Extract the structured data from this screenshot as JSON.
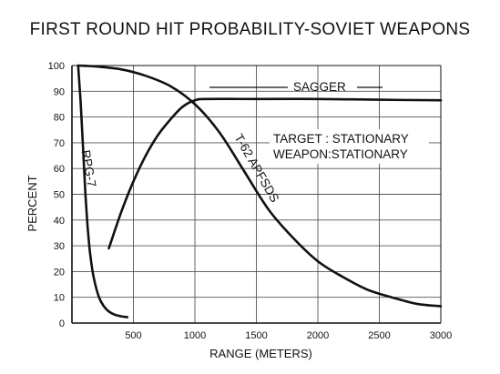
{
  "chart_data": {
    "type": "line",
    "title": "FIRST ROUND HIT PROBABILITY-SOVIET WEAPONS",
    "xlabel": "RANGE (METERS)",
    "ylabel": "PERCENT",
    "xlim": [
      0,
      3000
    ],
    "ylim": [
      0,
      100
    ],
    "x_ticks": [
      500,
      1000,
      1500,
      2000,
      2500,
      3000
    ],
    "y_ticks": [
      0,
      10,
      20,
      30,
      40,
      50,
      60,
      70,
      80,
      90,
      100
    ],
    "grid": true,
    "line_color": "#111111",
    "series": [
      {
        "name": "RPG-7",
        "x": [
          50,
          70,
          90,
          110,
          130,
          150,
          180,
          220,
          260,
          300,
          350,
          400,
          450
        ],
        "y": [
          100,
          86,
          68,
          50,
          36,
          26,
          17,
          10,
          6.5,
          4.5,
          3.2,
          2.6,
          2.3
        ]
      },
      {
        "name": "SAGGER",
        "x": [
          300,
          400,
          500,
          600,
          700,
          800,
          900,
          1000,
          1100,
          1500,
          2000,
          2500,
          3000
        ],
        "y": [
          29,
          43,
          55,
          65,
          73,
          79,
          84,
          86.5,
          87,
          87,
          87,
          86.7,
          86.5
        ]
      },
      {
        "name": "T-62 APFSDS",
        "x": [
          50,
          200,
          400,
          600,
          800,
          1000,
          1200,
          1400,
          1600,
          1800,
          2000,
          2200,
          2400,
          2600,
          2800,
          3000
        ],
        "y": [
          100,
          99.6,
          98.5,
          96,
          92,
          85,
          74,
          59,
          44,
          33,
          24,
          18,
          13,
          10,
          7.5,
          6.5
        ]
      }
    ],
    "annotations": [
      {
        "text": "SAGGER"
      },
      {
        "text": "TARGET : STATIONARY"
      },
      {
        "text": "WEAPON:STATIONARY"
      }
    ]
  }
}
